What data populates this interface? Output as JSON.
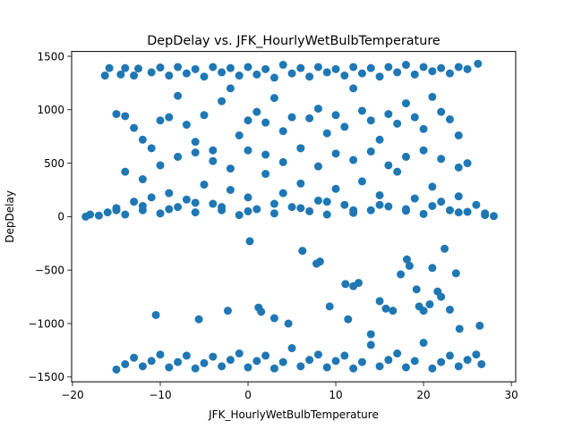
{
  "chart_data": {
    "type": "scatter",
    "title": "DepDelay vs. JFK_HourlyWetBulbTemperature",
    "xlabel": "JFK_HourlyWetBulbTemperature",
    "ylabel": "DepDelay",
    "xlim": [
      -20.1,
      30.5
    ],
    "ylim": [
      -1545,
      1545
    ],
    "xticks": [
      -20,
      -10,
      0,
      10,
      20,
      30
    ],
    "yticks": [
      -1500,
      -1000,
      -500,
      0,
      500,
      1000,
      1500
    ],
    "grid": false,
    "marker_color": "#1f77b4",
    "points": [
      [
        -18.5,
        0
      ],
      [
        -17,
        10
      ],
      [
        -16,
        40
      ],
      [
        -15,
        80
      ],
      [
        -14,
        20
      ],
      [
        -13,
        140
      ],
      [
        -12,
        60
      ],
      [
        -11,
        180
      ],
      [
        -10,
        30
      ],
      [
        -9,
        220
      ],
      [
        -8,
        90
      ],
      [
        -7,
        160
      ],
      [
        -6,
        40
      ],
      [
        -5,
        300
      ],
      [
        -4,
        120
      ],
      [
        -3,
        60
      ],
      [
        -2,
        250
      ],
      [
        -1,
        15
      ],
      [
        0,
        180
      ],
      [
        1,
        70
      ],
      [
        2,
        400
      ],
      [
        3,
        30
      ],
      [
        4,
        220
      ],
      [
        5,
        90
      ],
      [
        6,
        310
      ],
      [
        7,
        50
      ],
      [
        8,
        150
      ],
      [
        9,
        20
      ],
      [
        10,
        260
      ],
      [
        11,
        110
      ],
      [
        12,
        35
      ],
      [
        13,
        330
      ],
      [
        14,
        60
      ],
      [
        15,
        200
      ],
      [
        16,
        95
      ],
      [
        17,
        420
      ],
      [
        18,
        55
      ],
      [
        19,
        170
      ],
      [
        20,
        25
      ],
      [
        21,
        280
      ],
      [
        22,
        140
      ],
      [
        23,
        60
      ],
      [
        24,
        190
      ],
      [
        25,
        45
      ],
      [
        26,
        110
      ],
      [
        27,
        30
      ],
      [
        28,
        5
      ],
      [
        -16.3,
        1320
      ],
      [
        -15.8,
        1390
      ],
      [
        -14.5,
        1330
      ],
      [
        -14,
        1390
      ],
      [
        -13,
        1320
      ],
      [
        -12.5,
        1385
      ],
      [
        -11,
        1350
      ],
      [
        -10,
        1395
      ],
      [
        -9,
        1320
      ],
      [
        -8,
        1400
      ],
      [
        -7,
        1340
      ],
      [
        -6,
        1380
      ],
      [
        -5,
        1310
      ],
      [
        -4,
        1400
      ],
      [
        -3,
        1350
      ],
      [
        -2,
        1390
      ],
      [
        -1,
        1320
      ],
      [
        0,
        1400
      ],
      [
        1,
        1330
      ],
      [
        2,
        1380
      ],
      [
        3,
        1300
      ],
      [
        4,
        1420
      ],
      [
        5,
        1340
      ],
      [
        6,
        1390
      ],
      [
        7,
        1310
      ],
      [
        8,
        1400
      ],
      [
        9,
        1350
      ],
      [
        10,
        1380
      ],
      [
        11,
        1320
      ],
      [
        12,
        1400
      ],
      [
        13,
        1340
      ],
      [
        14,
        1390
      ],
      [
        15,
        1310
      ],
      [
        16,
        1400
      ],
      [
        17,
        1350
      ],
      [
        18,
        1420
      ],
      [
        19,
        1330
      ],
      [
        20,
        1400
      ],
      [
        21,
        1360
      ],
      [
        22,
        1390
      ],
      [
        23,
        1340
      ],
      [
        24,
        1400
      ],
      [
        25,
        1380
      ],
      [
        26.2,
        1430
      ],
      [
        -15,
        960
      ],
      [
        -14,
        940
      ],
      [
        -13,
        830
      ],
      [
        -12,
        720
      ],
      [
        -11,
        640
      ],
      [
        -10,
        900
      ],
      [
        -9,
        930
      ],
      [
        -8,
        1130
      ],
      [
        -7,
        860
      ],
      [
        -6,
        700
      ],
      [
        -5,
        950
      ],
      [
        -4,
        620
      ],
      [
        -3,
        1080
      ],
      [
        -2,
        1200
      ],
      [
        -1,
        760
      ],
      [
        0,
        900
      ],
      [
        1,
        980
      ],
      [
        2,
        880
      ],
      [
        3,
        1110
      ],
      [
        4,
        800
      ],
      [
        5,
        930
      ],
      [
        6,
        640
      ],
      [
        7,
        920
      ],
      [
        8,
        1010
      ],
      [
        9,
        780
      ],
      [
        10,
        950
      ],
      [
        11,
        840
      ],
      [
        12,
        1200
      ],
      [
        13,
        990
      ],
      [
        14,
        900
      ],
      [
        15,
        720
      ],
      [
        16,
        960
      ],
      [
        17,
        870
      ],
      [
        18,
        1060
      ],
      [
        19,
        930
      ],
      [
        20,
        820
      ],
      [
        21,
        1120
      ],
      [
        22,
        980
      ],
      [
        23,
        910
      ],
      [
        24,
        760
      ],
      [
        25,
        500
      ],
      [
        -14,
        420
      ],
      [
        -12,
        350
      ],
      [
        -10,
        480
      ],
      [
        -8,
        560
      ],
      [
        -6,
        600
      ],
      [
        -4,
        520
      ],
      [
        -2,
        450
      ],
      [
        0,
        620
      ],
      [
        2,
        580
      ],
      [
        4,
        510
      ],
      [
        6,
        640
      ],
      [
        8,
        470
      ],
      [
        10,
        590
      ],
      [
        12,
        530
      ],
      [
        14,
        610
      ],
      [
        16,
        480
      ],
      [
        18,
        560
      ],
      [
        20,
        620
      ],
      [
        22,
        540
      ],
      [
        24,
        460
      ],
      [
        -18,
        20
      ],
      [
        -15,
        60
      ],
      [
        -12,
        100
      ],
      [
        -9,
        70
      ],
      [
        -6,
        130
      ],
      [
        -3,
        90
      ],
      [
        0,
        50
      ],
      [
        3,
        120
      ],
      [
        6,
        80
      ],
      [
        9,
        140
      ],
      [
        12,
        60
      ],
      [
        15,
        110
      ],
      [
        18,
        70
      ],
      [
        21,
        100
      ],
      [
        24,
        40
      ],
      [
        27,
        15
      ],
      [
        0.2,
        -230
      ],
      [
        6.2,
        -320
      ],
      [
        7.8,
        -440
      ],
      [
        8.2,
        -420
      ],
      [
        9.3,
        -840
      ],
      [
        11.1,
        -630
      ],
      [
        12,
        -650
      ],
      [
        12.6,
        -620
      ],
      [
        15,
        -790
      ],
      [
        15.7,
        -860
      ],
      [
        16.5,
        -880
      ],
      [
        17.4,
        -540
      ],
      [
        18.1,
        -400
      ],
      [
        18.4,
        -460
      ],
      [
        19.2,
        -680
      ],
      [
        19.5,
        -840
      ],
      [
        20,
        -880
      ],
      [
        20.7,
        -820
      ],
      [
        21,
        -480
      ],
      [
        21.6,
        -700
      ],
      [
        22,
        -750
      ],
      [
        22.4,
        -300
      ],
      [
        23,
        -870
      ],
      [
        23.7,
        -530
      ],
      [
        -10.5,
        -920
      ],
      [
        -5.6,
        -960
      ],
      [
        -2.3,
        -880
      ],
      [
        1.2,
        -850
      ],
      [
        1.5,
        -890
      ],
      [
        3,
        -950
      ],
      [
        4.6,
        -1000
      ],
      [
        11.4,
        -960
      ],
      [
        14,
        -1100
      ],
      [
        24.1,
        -1050
      ],
      [
        26.4,
        -1020
      ],
      [
        -15,
        -1430
      ],
      [
        -14,
        -1380
      ],
      [
        -13,
        -1320
      ],
      [
        -12,
        -1400
      ],
      [
        -11,
        -1350
      ],
      [
        -10,
        -1290
      ],
      [
        -9,
        -1410
      ],
      [
        -8,
        -1360
      ],
      [
        -7,
        -1300
      ],
      [
        -6,
        -1420
      ],
      [
        -5,
        -1370
      ],
      [
        -4,
        -1310
      ],
      [
        -3,
        -1400
      ],
      [
        -2,
        -1340
      ],
      [
        -1,
        -1280
      ],
      [
        0,
        -1410
      ],
      [
        1,
        -1350
      ],
      [
        2,
        -1300
      ],
      [
        3,
        -1420
      ],
      [
        4,
        -1360
      ],
      [
        5,
        -1230
      ],
      [
        6,
        -1400
      ],
      [
        7,
        -1340
      ],
      [
        8,
        -1290
      ],
      [
        9,
        -1410
      ],
      [
        10,
        -1350
      ],
      [
        11,
        -1300
      ],
      [
        12,
        -1420
      ],
      [
        13,
        -1360
      ],
      [
        14,
        -1200
      ],
      [
        15,
        -1400
      ],
      [
        16,
        -1340
      ],
      [
        17,
        -1280
      ],
      [
        18,
        -1410
      ],
      [
        19,
        -1350
      ],
      [
        20,
        -1180
      ],
      [
        21,
        -1420
      ],
      [
        22,
        -1360
      ],
      [
        23,
        -1300
      ],
      [
        24,
        -1400
      ],
      [
        25,
        -1340
      ],
      [
        26,
        -1290
      ],
      [
        26.6,
        -1380
      ]
    ]
  }
}
